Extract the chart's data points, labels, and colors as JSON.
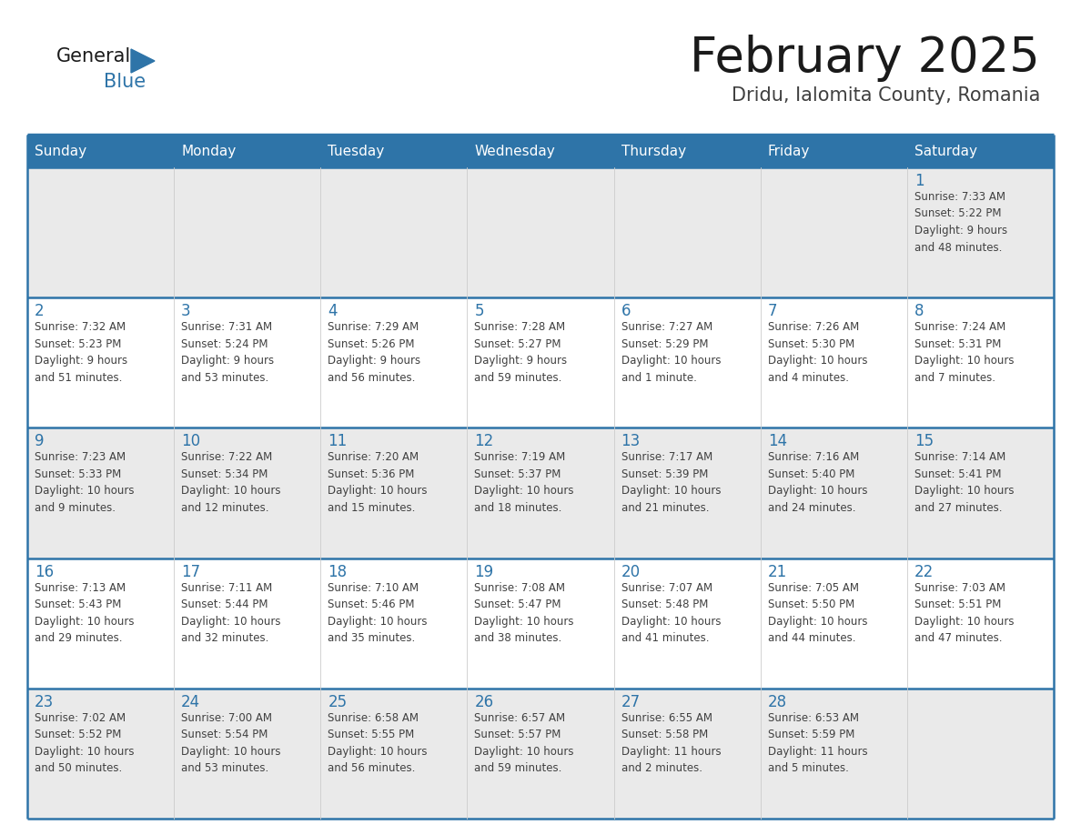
{
  "title": "February 2025",
  "subtitle": "Dridu, Ialomita County, Romania",
  "header_bg": "#2E74A8",
  "header_text_color": "#FFFFFF",
  "cell_bg_odd": "#EAEAEA",
  "cell_bg_even": "#FFFFFF",
  "day_number_color": "#2E74A8",
  "info_text_color": "#404040",
  "border_color": "#2E74A8",
  "days_of_week": [
    "Sunday",
    "Monday",
    "Tuesday",
    "Wednesday",
    "Thursday",
    "Friday",
    "Saturday"
  ],
  "weeks": [
    [
      {
        "day": "",
        "info": ""
      },
      {
        "day": "",
        "info": ""
      },
      {
        "day": "",
        "info": ""
      },
      {
        "day": "",
        "info": ""
      },
      {
        "day": "",
        "info": ""
      },
      {
        "day": "",
        "info": ""
      },
      {
        "day": "1",
        "info": "Sunrise: 7:33 AM\nSunset: 5:22 PM\nDaylight: 9 hours\nand 48 minutes."
      }
    ],
    [
      {
        "day": "2",
        "info": "Sunrise: 7:32 AM\nSunset: 5:23 PM\nDaylight: 9 hours\nand 51 minutes."
      },
      {
        "day": "3",
        "info": "Sunrise: 7:31 AM\nSunset: 5:24 PM\nDaylight: 9 hours\nand 53 minutes."
      },
      {
        "day": "4",
        "info": "Sunrise: 7:29 AM\nSunset: 5:26 PM\nDaylight: 9 hours\nand 56 minutes."
      },
      {
        "day": "5",
        "info": "Sunrise: 7:28 AM\nSunset: 5:27 PM\nDaylight: 9 hours\nand 59 minutes."
      },
      {
        "day": "6",
        "info": "Sunrise: 7:27 AM\nSunset: 5:29 PM\nDaylight: 10 hours\nand 1 minute."
      },
      {
        "day": "7",
        "info": "Sunrise: 7:26 AM\nSunset: 5:30 PM\nDaylight: 10 hours\nand 4 minutes."
      },
      {
        "day": "8",
        "info": "Sunrise: 7:24 AM\nSunset: 5:31 PM\nDaylight: 10 hours\nand 7 minutes."
      }
    ],
    [
      {
        "day": "9",
        "info": "Sunrise: 7:23 AM\nSunset: 5:33 PM\nDaylight: 10 hours\nand 9 minutes."
      },
      {
        "day": "10",
        "info": "Sunrise: 7:22 AM\nSunset: 5:34 PM\nDaylight: 10 hours\nand 12 minutes."
      },
      {
        "day": "11",
        "info": "Sunrise: 7:20 AM\nSunset: 5:36 PM\nDaylight: 10 hours\nand 15 minutes."
      },
      {
        "day": "12",
        "info": "Sunrise: 7:19 AM\nSunset: 5:37 PM\nDaylight: 10 hours\nand 18 minutes."
      },
      {
        "day": "13",
        "info": "Sunrise: 7:17 AM\nSunset: 5:39 PM\nDaylight: 10 hours\nand 21 minutes."
      },
      {
        "day": "14",
        "info": "Sunrise: 7:16 AM\nSunset: 5:40 PM\nDaylight: 10 hours\nand 24 minutes."
      },
      {
        "day": "15",
        "info": "Sunrise: 7:14 AM\nSunset: 5:41 PM\nDaylight: 10 hours\nand 27 minutes."
      }
    ],
    [
      {
        "day": "16",
        "info": "Sunrise: 7:13 AM\nSunset: 5:43 PM\nDaylight: 10 hours\nand 29 minutes."
      },
      {
        "day": "17",
        "info": "Sunrise: 7:11 AM\nSunset: 5:44 PM\nDaylight: 10 hours\nand 32 minutes."
      },
      {
        "day": "18",
        "info": "Sunrise: 7:10 AM\nSunset: 5:46 PM\nDaylight: 10 hours\nand 35 minutes."
      },
      {
        "day": "19",
        "info": "Sunrise: 7:08 AM\nSunset: 5:47 PM\nDaylight: 10 hours\nand 38 minutes."
      },
      {
        "day": "20",
        "info": "Sunrise: 7:07 AM\nSunset: 5:48 PM\nDaylight: 10 hours\nand 41 minutes."
      },
      {
        "day": "21",
        "info": "Sunrise: 7:05 AM\nSunset: 5:50 PM\nDaylight: 10 hours\nand 44 minutes."
      },
      {
        "day": "22",
        "info": "Sunrise: 7:03 AM\nSunset: 5:51 PM\nDaylight: 10 hours\nand 47 minutes."
      }
    ],
    [
      {
        "day": "23",
        "info": "Sunrise: 7:02 AM\nSunset: 5:52 PM\nDaylight: 10 hours\nand 50 minutes."
      },
      {
        "day": "24",
        "info": "Sunrise: 7:00 AM\nSunset: 5:54 PM\nDaylight: 10 hours\nand 53 minutes."
      },
      {
        "day": "25",
        "info": "Sunrise: 6:58 AM\nSunset: 5:55 PM\nDaylight: 10 hours\nand 56 minutes."
      },
      {
        "day": "26",
        "info": "Sunrise: 6:57 AM\nSunset: 5:57 PM\nDaylight: 10 hours\nand 59 minutes."
      },
      {
        "day": "27",
        "info": "Sunrise: 6:55 AM\nSunset: 5:58 PM\nDaylight: 11 hours\nand 2 minutes."
      },
      {
        "day": "28",
        "info": "Sunrise: 6:53 AM\nSunset: 5:59 PM\nDaylight: 11 hours\nand 5 minutes."
      },
      {
        "day": "",
        "info": ""
      }
    ]
  ]
}
